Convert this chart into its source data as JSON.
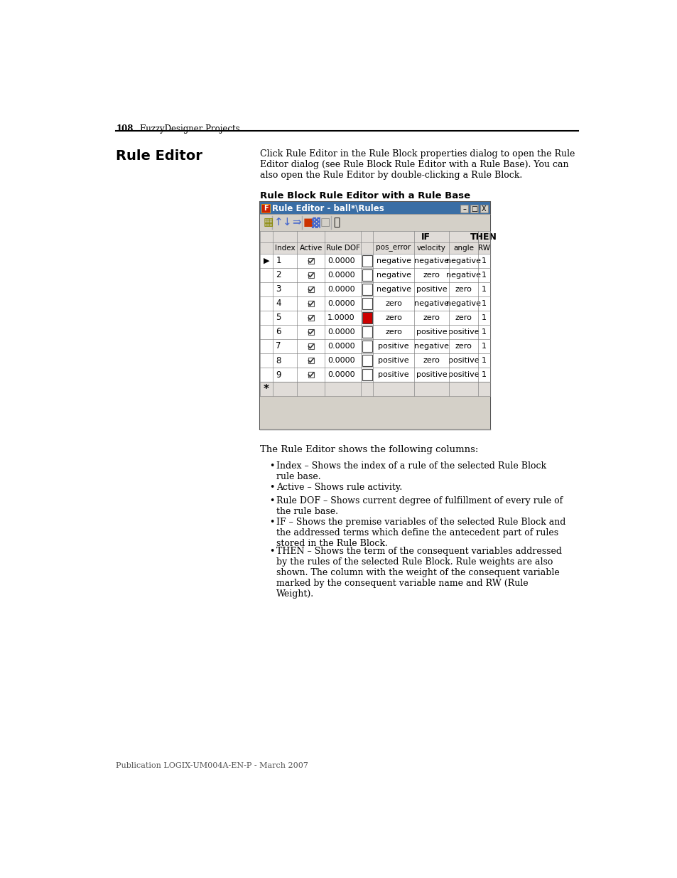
{
  "page_num": "108",
  "header_text": "FuzzyDesigner Projects",
  "section_title": "Rule Editor",
  "section_body": "Click Rule Editor in the Rule Block properties dialog to open the Rule\nEditor dialog (see Rule Block Rule Editor with a Rule Base). You can\nalso open the Rule Editor by double-clicking a Rule Block.",
  "figure_title": "Rule Block Rule Editor with a Rule Base",
  "window_title": "Rule Editor - ball*\\Rules",
  "rows": [
    {
      "arrow": true,
      "index": "1",
      "active": true,
      "dof": "0.0000",
      "box_red": false,
      "pos_error": "negative",
      "velocity": "negative",
      "angle": "negative",
      "rw": "1"
    },
    {
      "arrow": false,
      "index": "2",
      "active": true,
      "dof": "0.0000",
      "box_red": false,
      "pos_error": "negative",
      "velocity": "zero",
      "angle": "negative",
      "rw": "1"
    },
    {
      "arrow": false,
      "index": "3",
      "active": true,
      "dof": "0.0000",
      "box_red": false,
      "pos_error": "negative",
      "velocity": "positive",
      "angle": "zero",
      "rw": "1"
    },
    {
      "arrow": false,
      "index": "4",
      "active": true,
      "dof": "0.0000",
      "box_red": false,
      "pos_error": "zero",
      "velocity": "negative",
      "angle": "negative",
      "rw": "1"
    },
    {
      "arrow": false,
      "index": "5",
      "active": true,
      "dof": "1.0000",
      "box_red": true,
      "pos_error": "zero",
      "velocity": "zero",
      "angle": "zero",
      "rw": "1"
    },
    {
      "arrow": false,
      "index": "6",
      "active": true,
      "dof": "0.0000",
      "box_red": false,
      "pos_error": "zero",
      "velocity": "positive",
      "angle": "positive",
      "rw": "1"
    },
    {
      "arrow": false,
      "index": "7",
      "active": true,
      "dof": "0.0000",
      "box_red": false,
      "pos_error": "positive",
      "velocity": "negative",
      "angle": "zero",
      "rw": "1"
    },
    {
      "arrow": false,
      "index": "8",
      "active": true,
      "dof": "0.0000",
      "box_red": false,
      "pos_error": "positive",
      "velocity": "zero",
      "angle": "positive",
      "rw": "1"
    },
    {
      "arrow": false,
      "index": "9",
      "active": true,
      "dof": "0.0000",
      "box_red": false,
      "pos_error": "positive",
      "velocity": "positive",
      "angle": "positive",
      "rw": "1"
    }
  ],
  "bullet_points": [
    [
      "Index",
      "Shows the index of a rule of the selected Rule Block\nrule base."
    ],
    [
      "Active",
      "Shows rule activity."
    ],
    [
      "Rule DOF",
      "Shows current degree of fulfillment of every rule of\nthe rule base."
    ],
    [
      "IF",
      "Shows the premise variables of the selected Rule Block and\nthe addressed terms which define the antecedent part of rules\nstored in the Rule Block."
    ],
    [
      "THEN",
      "Shows the term of the consequent variables addressed\nby the rules of the selected Rule Block. Rule weights are also\nshown. The column with the weight of the consequent variable\nmarked by the consequent variable name and RW (Rule\nWeight)."
    ]
  ],
  "footer_text": "Publication LOGIX-UM004A-EN-P - March 2007"
}
